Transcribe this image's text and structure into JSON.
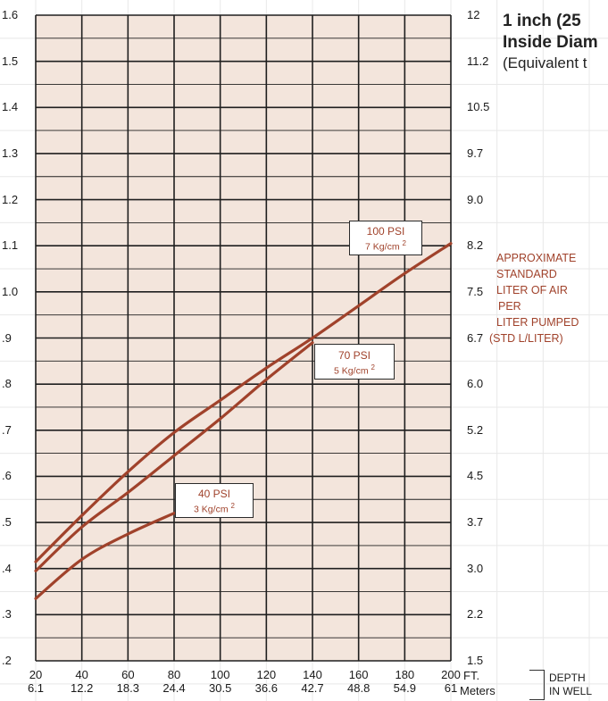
{
  "title": {
    "line1": "1  inch (25",
    "line2": "Inside Diam",
    "line3": "(Equivalent t"
  },
  "right_axis_label": [
    "APPROXIMATE",
    "STANDARD",
    "LITER OF AIR",
    "PER",
    "LITER PUMPED",
    "(STD L/LITER)"
  ],
  "x_unit_ft": "FT.",
  "x_unit_m": "Meters",
  "x_axis_label": [
    "DEPTH",
    "IN WELL"
  ],
  "colors": {
    "curve": "#a0422b",
    "plot_bg": "#f3e5dc",
    "grid": "#1f1f1f",
    "page_grid": "#e8e8e8"
  },
  "chart_data": {
    "type": "line",
    "grid": true,
    "xlim": [
      20,
      200
    ],
    "ylim": [
      0.2,
      1.6
    ],
    "x_ticks_ft": [
      "20",
      "40",
      "60",
      "80",
      "100",
      "120",
      "140",
      "160",
      "180",
      "200"
    ],
    "x_ticks_m": [
      "6.1",
      "12.2",
      "18.3",
      "24.4",
      "30.5",
      "36.6",
      "42.7",
      "48.8",
      "54.9",
      "61"
    ],
    "y_ticks_left": [
      ".2",
      ".3",
      ".4",
      ".5",
      ".6",
      ".7",
      ".8",
      ".9",
      "1.0",
      "1.1",
      "1.2",
      "1.3",
      "1.4",
      "1.5",
      "1.6"
    ],
    "y_ticks_right": [
      "1.5",
      "2.2",
      "3.0",
      "3.7",
      "4.5",
      "5.2",
      "6.0",
      "6.7",
      "7.5",
      "8.2",
      "9.0",
      "9.7",
      "10.5",
      "11.2",
      "12"
    ],
    "series": [
      {
        "name": "100 PSI",
        "unit_label": "7 Kg/cm",
        "x": [
          20,
          40,
          60,
          80,
          100,
          120,
          140,
          160,
          180,
          200
        ],
        "y": [
          0.415,
          0.515,
          0.61,
          0.695,
          0.765,
          0.835,
          0.9,
          0.97,
          1.04,
          1.105
        ]
      },
      {
        "name": "70 PSI",
        "unit_label": "5 Kg/cm",
        "x": [
          20,
          40,
          60,
          80,
          100,
          120,
          140
        ],
        "y": [
          0.395,
          0.49,
          0.565,
          0.645,
          0.725,
          0.81,
          0.89
        ]
      },
      {
        "name": "40 PSI",
        "unit_label": "3 Kg/cm",
        "x": [
          20,
          40,
          60,
          80
        ],
        "y": [
          0.335,
          0.42,
          0.475,
          0.52
        ]
      }
    ]
  }
}
